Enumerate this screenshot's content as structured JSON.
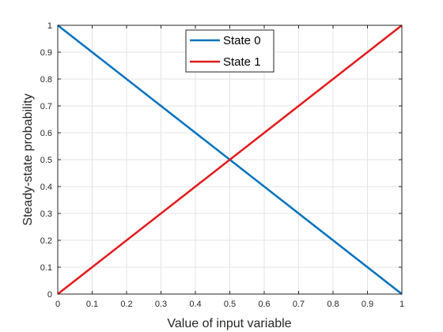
{
  "chart_data": {
    "type": "line",
    "title": "",
    "xlabel": "Value of input variable",
    "ylabel": "Steady-state probability",
    "xlim": [
      0,
      1
    ],
    "ylim": [
      0,
      1
    ],
    "xticks": [
      "0",
      "0.1",
      "0.2",
      "0.3",
      "0.4",
      "0.5",
      "0.6",
      "0.7",
      "0.8",
      "0.9",
      "1"
    ],
    "yticks": [
      "0",
      "0.1",
      "0.2",
      "0.3",
      "0.4",
      "0.5",
      "0.6",
      "0.7",
      "0.8",
      "0.9",
      "1"
    ],
    "grid": true,
    "legend_position": "top-center",
    "series": [
      {
        "name": "State 0",
        "color": "#0072BD",
        "x": [
          0,
          1
        ],
        "y": [
          1,
          0
        ]
      },
      {
        "name": "State 1",
        "color": "#E31A1C",
        "x": [
          0,
          1
        ],
        "y": [
          0,
          1
        ]
      }
    ]
  }
}
